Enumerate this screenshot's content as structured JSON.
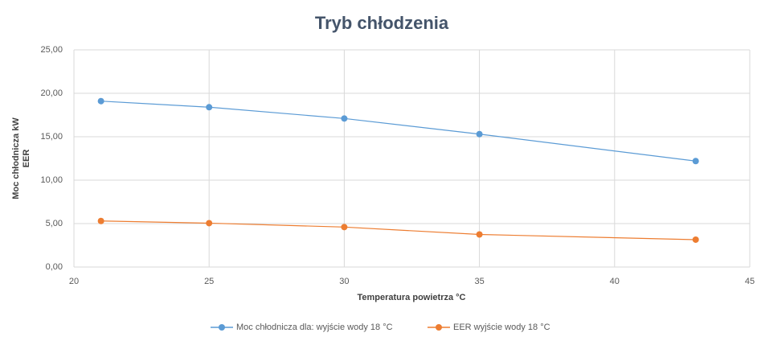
{
  "chart_data": {
    "type": "line",
    "title": "Tryb chłodzenia",
    "x_label": "Temperatura powietrza °C",
    "y_label": [
      "Moc chłodnicza kW",
      "EER"
    ],
    "x": [
      21,
      25,
      30,
      35,
      43
    ],
    "series": [
      {
        "name": "Moc chłodnicza dla: wyjście wody 18 °C",
        "color": "#5b9bd5",
        "values": [
          19.1,
          18.4,
          17.1,
          15.3,
          12.2
        ]
      },
      {
        "name": "EER wyjście wody 18 °C",
        "color": "#ed7d31",
        "values": [
          5.3,
          5.05,
          4.6,
          3.75,
          3.15
        ]
      }
    ],
    "xlim": [
      20,
      45
    ],
    "xticks": [
      20,
      25,
      30,
      35,
      40,
      45
    ],
    "ylim": [
      0,
      25
    ],
    "yticks": [
      {
        "value": 0,
        "label": "0,00"
      },
      {
        "value": 5,
        "label": "5,00"
      },
      {
        "value": 10,
        "label": "10,00"
      },
      {
        "value": 15,
        "label": "15,00"
      },
      {
        "value": 20,
        "label": "20,00"
      },
      {
        "value": 25,
        "label": "25,00"
      }
    ],
    "grid": true,
    "legend": "bottom"
  }
}
